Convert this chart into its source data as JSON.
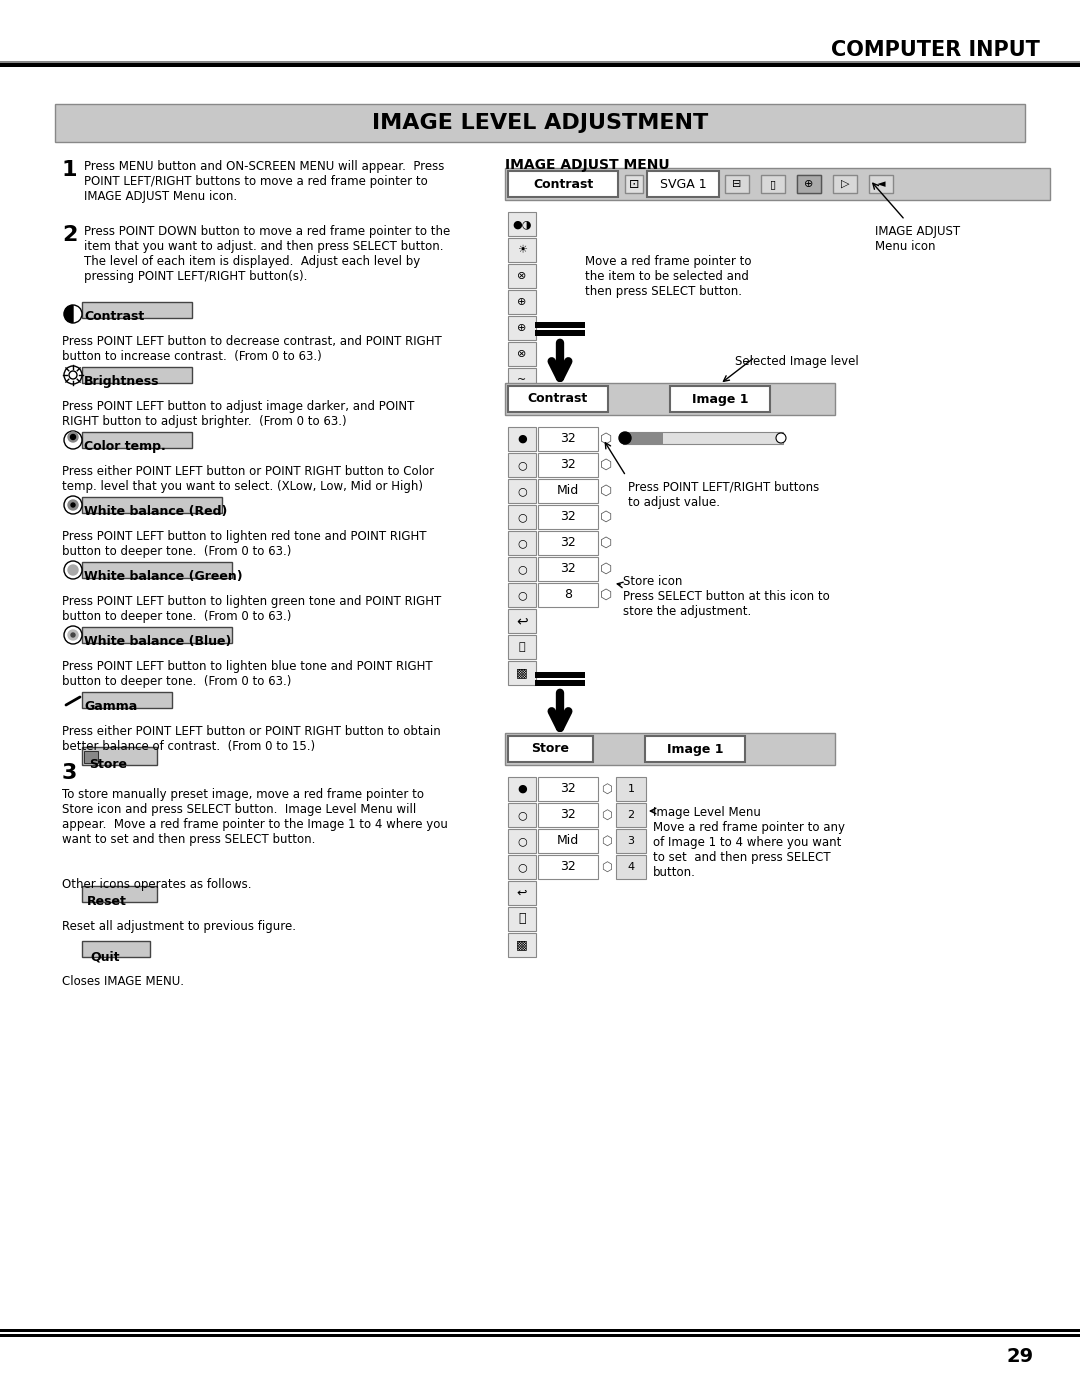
{
  "page_title": "COMPUTER INPUT",
  "section_title": "IMAGE LEVEL ADJUSTMENT",
  "bg_color": "#ffffff",
  "header_bg": "#c8c8c8",
  "step1_title": "1",
  "step1_text": "Press MENU button and ON-SCREEN MENU will appear.  Press\nPOINT LEFT/RIGHT buttons to move a red frame pointer to\nIMAGE ADJUST Menu icon.",
  "step2_title": "2",
  "step2_text": "Press POINT DOWN button to move a red frame pointer to the\nitem that you want to adjust. and then press SELECT button.\nThe level of each item is displayed.  Adjust each level by\npressing POINT LEFT/RIGHT button(s).",
  "contrast_label": "Contrast",
  "contrast_desc": "Press POINT LEFT button to decrease contrast, and POINT RIGHT\nbutton to increase contrast.  (From 0 to 63.)",
  "brightness_label": "Brightness",
  "brightness_desc": "Press POINT LEFT button to adjust image darker, and POINT\nRIGHT button to adjust brighter.  (From 0 to 63.)",
  "colortemp_label": "Color temp.",
  "colortemp_desc": "Press either POINT LEFT button or POINT RIGHT button to Color\ntemp. level that you want to select. (XLow, Low, Mid or High)",
  "wbred_label": "White balance (Red)",
  "wbred_desc": "Press POINT LEFT button to lighten red tone and POINT RIGHT\nbutton to deeper tone.  (From 0 to 63.)",
  "wbgreen_label": "White balance (Green)",
  "wbgreen_desc": "Press POINT LEFT button to lighten green tone and POINT RIGHT\nbutton to deeper tone.  (From 0 to 63.)",
  "wbblue_label": "White balance (Blue)",
  "wbblue_desc": "Press POINT LEFT button to lighten blue tone and POINT RIGHT\nbutton to deeper tone.  (From 0 to 63.)",
  "gamma_label": "Gamma",
  "gamma_desc": "Press either POINT LEFT button or POINT RIGHT button to obtain\nbetter balance of contrast.  (From 0 to 15.)",
  "step3_title": "3",
  "store_label": "Store",
  "store_desc": "To store manually preset image, move a red frame pointer to\nStore icon and press SELECT button.  Image Level Menu will\nappear.  Move a red frame pointer to the Image 1 to 4 where you\nwant to set and then press SELECT button.",
  "other_icons_text": "Other icons operates as follows.",
  "reset_label": "Reset",
  "reset_desc": "Reset all adjustment to previous figure.",
  "quit_label": "Quit",
  "quit_desc": "Closes IMAGE MENU.",
  "image_adjust_menu_title": "IMAGE ADJUST MENU",
  "menu_contrast_label": "Contrast",
  "menu_svga_label": "SVGA 1",
  "menu_note": "Move a red frame pointer to\nthe item to be selected and\nthen press SELECT button.",
  "menu_adjust_note": "IMAGE ADJUST\nMenu icon",
  "selected_image_level": "Selected Image level",
  "contrast_image1": "Contrast",
  "image1_label": "Image 1",
  "row_values": [
    "32",
    "32",
    "Mid",
    "32",
    "32",
    "32",
    "8"
  ],
  "adjust_note": "Press POINT LEFT/RIGHT buttons\nto adjust value.",
  "store_icon_note": "Store icon\nPress SELECT button at this icon to\nstore the adjustment.",
  "store_label2": "Store",
  "image1_label2": "Image 1",
  "image_level_menu_note": "Image Level Menu\nMove a red frame pointer to any\nof Image 1 to 4 where you want\nto set  and then press SELECT\nbutton.",
  "page_number": "29",
  "gray_menu_bg": "#d0d0d0",
  "white": "#ffffff",
  "black": "#000000",
  "dark_gray": "#808080"
}
